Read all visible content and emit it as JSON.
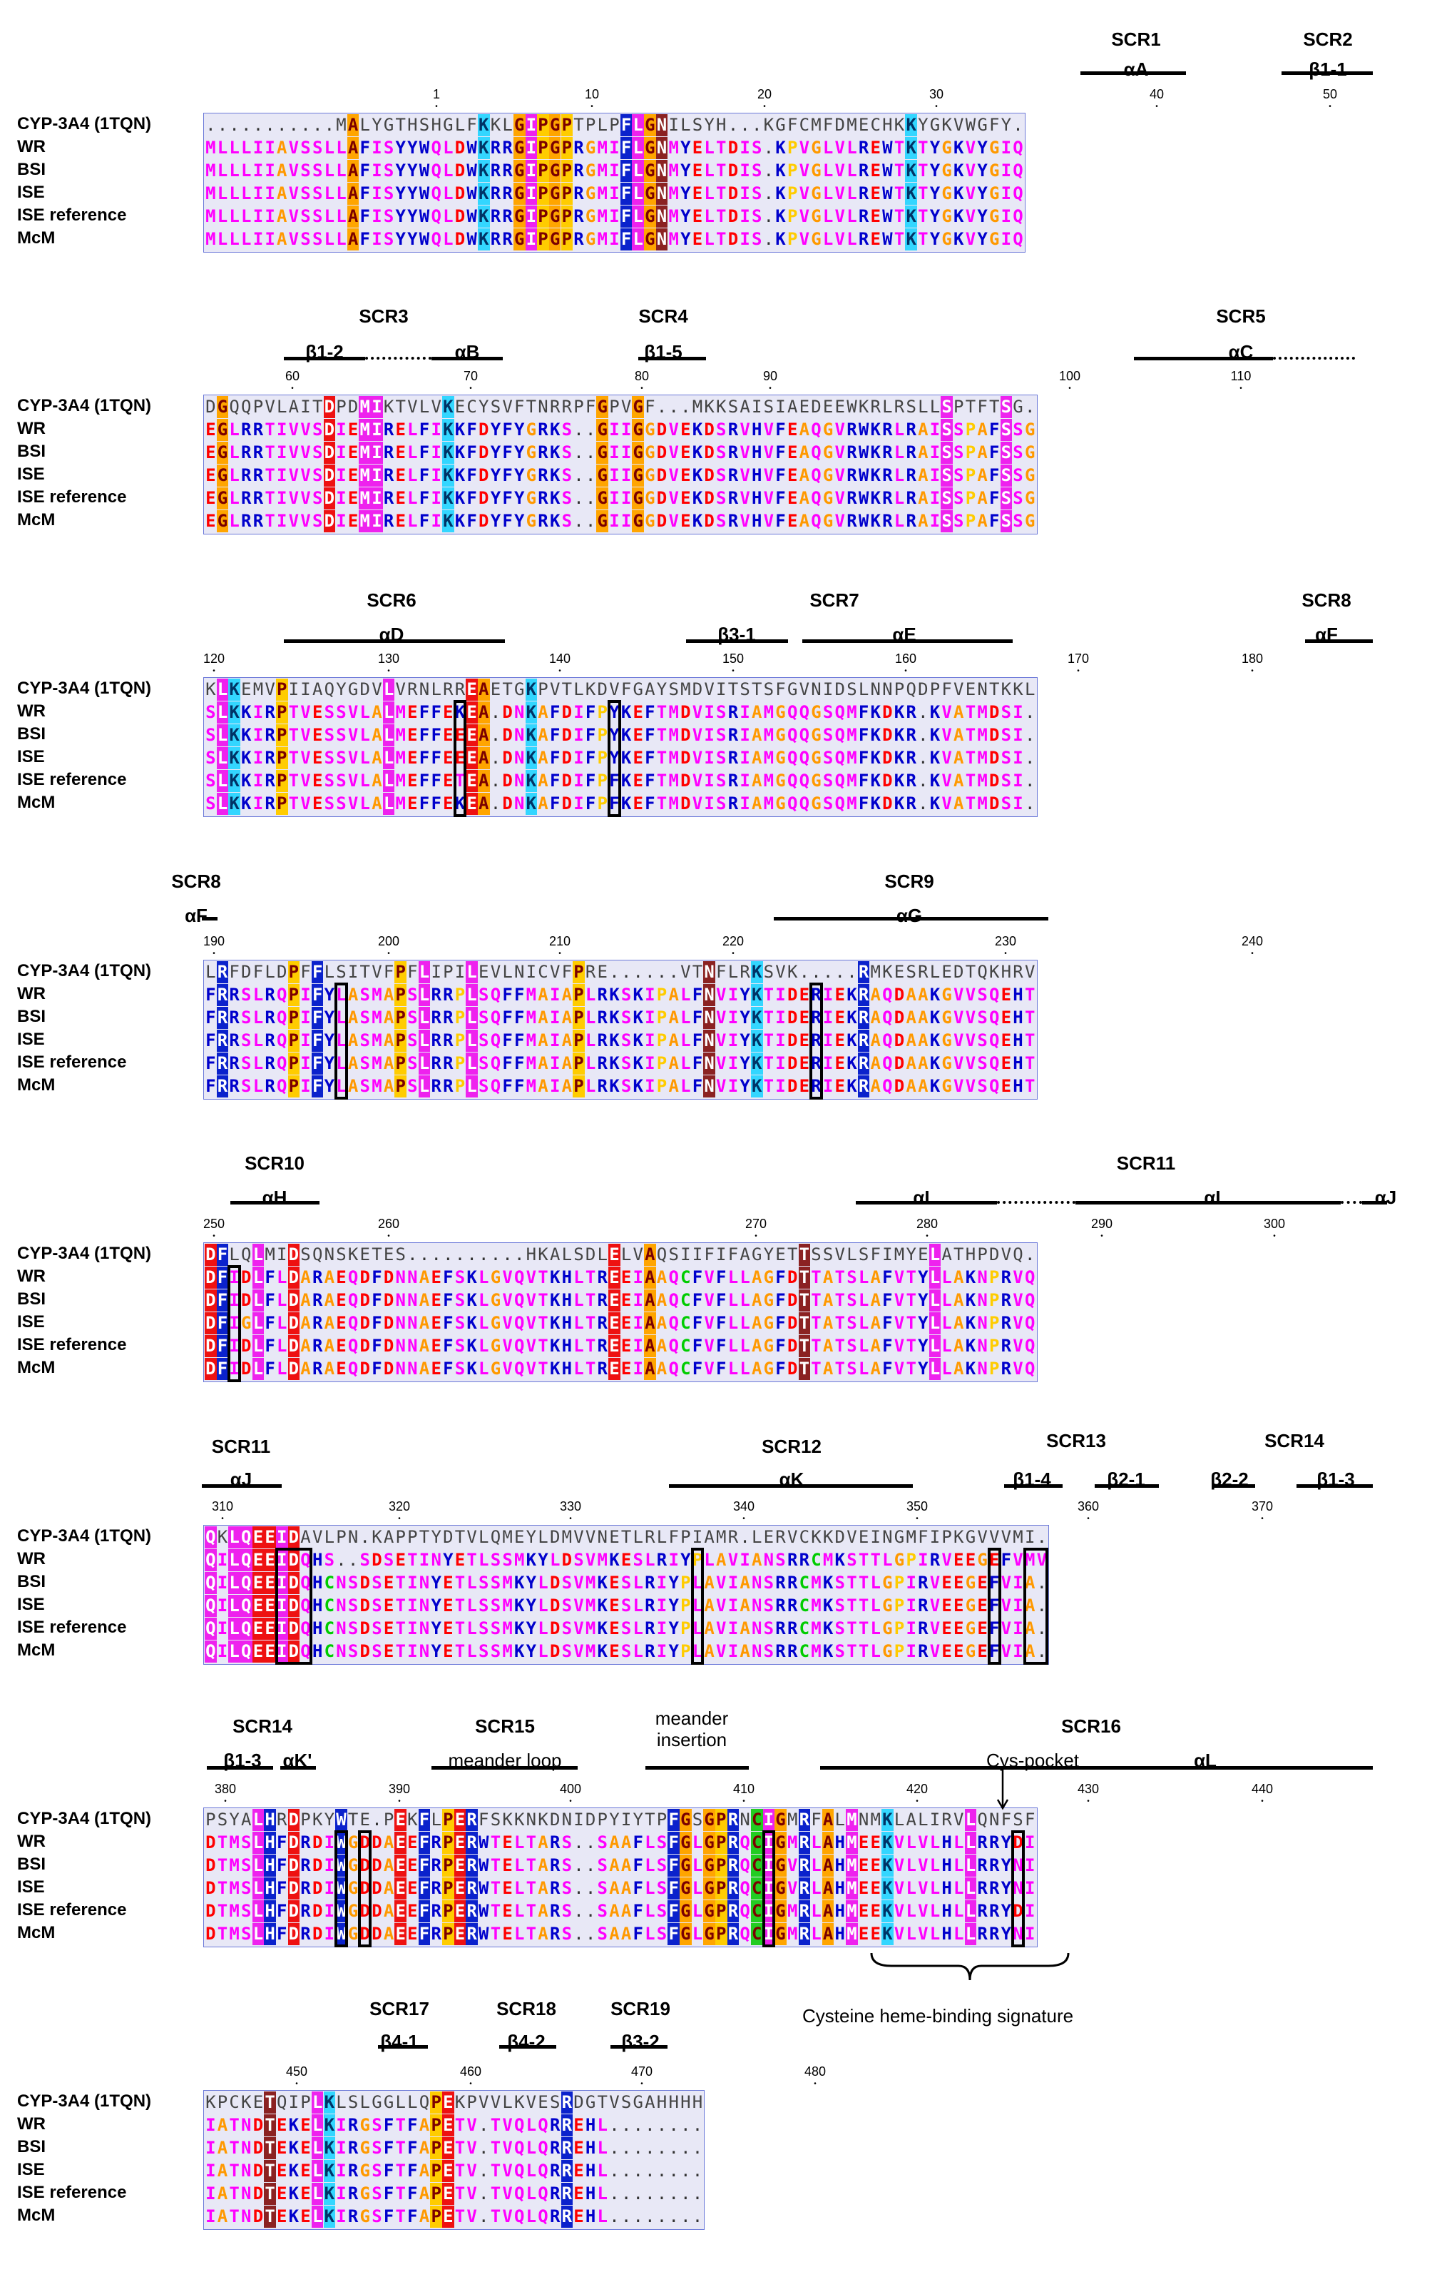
{
  "row_labels": [
    "CYP-3A4 (1TQN)",
    "WR",
    "BSI",
    "ISE",
    "ISE reference",
    "McM"
  ],
  "blocks": [
    {
      "tick_numbers": [
        1,
        10,
        20,
        30,
        40,
        50
      ],
      "sequences": [
        "...........MALYGTHSHGLFKKLGIPGPTPLPFLGNILSYH...KGFCMFDMECHKKYGKVWGFY",
        "MLLLIIAVSSLLAFISYYWQLDWKRRGIPGPRGMIFLGNMYELTDIS.KPVGLVLREWTKTYGKVYGIQ",
        "MLLLIIAVSSLLAFISYYWQLDWKRRGIPGPRGMIFLGNMYELTDIS.KPVGLVLREWTKTYGKVYGIQ",
        "MLLLIIAVSSLLAFISYYWQLDWKRRGIPGPRGMIFLGNMYELTDIS.KPVGLVLREWTKTYGKVYGIQ",
        "MLLLIIAVSSLLAFISYYWQLDWKRRGIPGPRGMIFLGNMYELTDIS.KPVGLVLREWTKTYGKVYGIQ",
        "MLLLIIAVSSLLAFISYYWQLDWKRRGIPGPRGMIFLGNMYELTDIS.KPVGLVLREWTKTYGKVYGIQ"
      ],
      "scr": [
        {
          "name": "SCR1",
          "sst": "αA"
        },
        {
          "name": "SCR2",
          "sst": "β1-1"
        }
      ]
    },
    {
      "tick_numbers": [
        60,
        70,
        80,
        90,
        100,
        110
      ],
      "sequences": [
        "DGQQPVLAITDPDMIKTVLVKECYSVFTNRRPFGPVGF...MKKSAISIAEDEEWKRLRSLLSPTFTSG",
        "EGLRRTIVVSDIEMIRELFIKKFDYFYGRKS..GIIGGDVEKDSRVHVFEAQGVRWKRLRAISSPAFSSG",
        "EGLRRTIVVSDIEMIRELFIKKFDYFYGRKS..GIIGGDVEKDSRVHVFEAQGVRWKRLRAISSPAFSSG",
        "EGLRRTIVVSDIEMIRELFIKKFDYFYGRKS..GIIGGDVEKDSRVHVFEAQGVRWKRLRAISSPAFSSG",
        "EGLRRTIVVSDIEMIRELFIKKFDYFYGRKS..GIIGGDVEKDSRVHVFEAQGVRWKRLRAISSPAFSSG",
        "EGLRRTIVVSDIEMIRELFIKKFDYFYGRKS..GIIGGDVEKDSRVHVFEAQGVRWKRLRAISSPAFSSG"
      ],
      "scr": [
        {
          "name": "SCR3",
          "sst1": "β1-2",
          "sst2": "αB"
        },
        {
          "name": "SCR4",
          "sst": "β1-5"
        },
        {
          "name": "SCR5",
          "sst": "αC"
        }
      ]
    },
    {
      "tick_numbers": [
        120,
        130,
        140,
        150,
        160,
        170,
        180
      ],
      "sequences": [
        "KLKEMVPIIAQYGDVLVRNLRREAETGKPVTLKDVFGAYSMDVITSTSFGVNIDSLNNPQDPFVENTKKL",
        "SLKKIRPTVESSVLALMEFFEKEA.DNKAFDIFPYKEFTMDVISRIAMGQQGSQMFKDKR.KVATMDSI",
        "SLKKIRPTVESSVLALMEFFEEEA.DNKAFDIFPYKEFTMDVISRIAMGQQGSQMFKDKR.KVATMDSI",
        "SLKKIRPTVESSVLALMEFFEEEA.DNKAFDIFPYKEFTMDVISRIAMGQQGSQMFKDKR.KVATMDSI",
        "SLKKIRPTVESSVLALMEFFETEA.DNKAFDIFPFKEFTMDVISRIAMGQQGSQMFKDKR.KVATMDSI",
        "SLKKIRPTVESSVLALMEFFEKEA.DNKAFDIFPFKEFTMDVISRIAMGQQGSQMFKDKR.KVATMDSI"
      ],
      "scr": [
        {
          "name": "SCR6",
          "sst": "αD"
        },
        {
          "name": "SCR7",
          "sst1": "β3-1",
          "sst2": "αE"
        },
        {
          "name": "SCR8",
          "sst": "αF"
        }
      ]
    },
    {
      "tick_numbers": [
        190,
        200,
        210,
        220,
        230,
        240
      ],
      "sequences": [
        "LRFDFLDPFFLSITVFPFLIPILEVLNICVFPRE......VTNFLRKSVK.....RMKESRLEDTQKHRV",
        "FRRSLRQPIFYLASMAPSLRRPLSQFFMAIAPLRKSKIPALFNVIYKTIDERIEKRAQDAAKGVVSQEHT",
        "FRRSLRQPIFYLASMAPSLRRPLSQFFMAIAPLRKSKIPALFNVIYKTIDERIEKRAQDAAKGVVSQEHT",
        "FRRSLRQPIFYLASMAPSLRRPLSQFFMAIAPLRKSKIPALFNVIYKTIDERIEKRAQDAAKGVVSQEHT",
        "FRRSLRQPIFYLASMAPSLRRPLSQFFMAIAPLRKSKIPALFNVIYKTIDERIEKRAQDAAKGVVSQEHT",
        "FRRSLRQPIFYLASMAPSLRRPLSQFFMAIAPLRKSKIPALFNVIYKTIDERIEKRAQDAAKGVVSQEHT"
      ],
      "scr": [
        {
          "name": "SCR8",
          "sst": "αF"
        },
        {
          "name": "SCR9",
          "sst": "αG"
        }
      ]
    },
    {
      "tick_numbers": [
        250,
        260,
        270,
        280,
        290,
        300
      ],
      "sequences": [
        "DFLQLMIDSQNSKETES..........HKALSDLELVAQSIIFIFAGYETTSSVLSFIMYELATHPDVQ",
        "DFIDLFLDARAEQDFDNNAEFSKLGVQVTKHLTREEIAAQCFVFLLAGFDTTATSLAFVTYLLAKNPRVQ",
        "DFIDLFLDARAEQDFDNNAEFSKLGVQVTKHLTREEIAAQCFVFLLAGFDTTATSLAFVTYLLAKNPRVQ",
        "DFIGLFLDARAEQDFDNNAEFSKLGVQVTKHLTREEIAAQCFVFLLAGFDTTATSLAFVTYLLAKNPRVQ",
        "DFIDLFLDARAEQDFDNNAEFSKLGVQVTKHLTREEIAAQCFVFLLAGFDTTATSLAFVTYLLAKNPRVQ",
        "DFIDLFLDARAEQDFDNNAEFSKLGVQVTKHLTREEIAAQCFVFLLAGFDTTATSLAFVTYLLAKNPRVQ"
      ],
      "scr": [
        {
          "name": "SCR10",
          "sst": "αH"
        },
        {
          "name": "SCR11",
          "sst1": "αI",
          "sst2": "αI",
          "sst3": "αJ"
        }
      ]
    },
    {
      "tick_numbers": [
        310,
        320,
        330,
        340,
        350,
        360,
        370
      ],
      "sequences": [
        "QKLQEEIDAVLPN.KAPPTYDTVLQMEYLDMVVNETLRLFPIAMR.LERVCKKDVEINGMFIPKGVVVMI",
        "QILQEEIDQHS..SDSETINYETLSSMKYLDSVMKESLRIYPLAVIANSRRCMKSTTLGPIRVEEGEFVMV",
        "QILQEEIDQHCNSDSETINYETLSSMKYLDSVMKESLRIYPLAVIANSRRCMKSTTLGPIRVEEGEFVIA",
        "QILQEEIDQHCNSDSETINYETLSSMKYLDSVMKESLRIYPLAVIANSRRCMKSTTLGPIRVEEGEFVIA",
        "QILQEEIDQHCNSDSETINYETLSSMKYLDSVMKESLRIYPLAVIANSRRCMKSTTLGPIRVEEGEFVIA",
        "QILQEEIDQHCNSDSETINYETLSSMKYLDSVMKESLRIYPLAVIANSRRCMKSTTLGPIRVEEGEFVIA"
      ],
      "scr": [
        {
          "name": "SCR11",
          "sst": "αJ"
        },
        {
          "name": "SCR12",
          "sst": "αK"
        },
        {
          "name": "SCR13",
          "sst1": "β1-4",
          "sst2": "β2-1"
        },
        {
          "name": "SCR14",
          "sst1": "β2-2",
          "sst2": "β1-3"
        }
      ]
    },
    {
      "tick_numbers": [
        380,
        390,
        400,
        410,
        420,
        430,
        440
      ],
      "sequences": [
        "PSYALHRDPKYWTE.PEKFLPERFSKKNKDNIDPYIYTPFGSGPRNCIGMRFALMNMKLALIRVLQNFSF",
        "DTMSLHFDRDIWGDDAEEFRPERWTELTARS..SAAFLSFGLGPRQCIGMRLAHMEEKVLVLHLLRRYDI",
        "DTMSLHFDRDIWGDDAEEFRPERWTELTARS..SAAFLSFGLGPRQCIGVRLAHMEEKVLVLHLLRRYNI",
        "DTMSLHFDRDIWGDDAEEFRPERWTELTARS..SAAFLSFGLGPRQCIGVRLAHMEEKVLVLHLLRRYNI",
        "DTMSLHFDRDIWGDDAEEFRPERWTELTARS..SAAFLSFGLGPRQCIGMRLAHMEEKVLVLHLLRRYDI",
        "DTMSLHFDRDIWGDDAEEFRPERWTELTARS..SAAFLSFGLGPRQCIGMRLAHMEEKVLVLHLLRRYNI"
      ],
      "scr": [
        {
          "name": "SCR14",
          "sst1": "β1-3",
          "sst2": "αK'"
        },
        {
          "name": "SCR15",
          "sst": "meander loop"
        },
        {
          "name": "",
          "sst": "meander insertion"
        },
        {
          "name": "SCR16",
          "sst1": "Cys-pocket",
          "sst2": "αL"
        }
      ],
      "annotation": "Cysteine heme-binding signature"
    },
    {
      "tick_numbers": [
        450,
        460,
        470,
        480
      ],
      "sequences": [
        "KPCKETQIPLKLSLGGLLQPEKPVVLKVESRDGTVSGAHHHH",
        "IATNDTEKELKIRGSFTFAPETV.TVQLQRREHL........",
        "IATNDTEKELKIRGSFTFAPETV.TVQLQRREHL........",
        "IATNDTEKELKIRGSFTFAPETV.TVQLQRREHL........",
        "IATNDTEKELKIRGSFTFAPETV.TVQLQRREHL........",
        "IATNDTEKELKIRGSFTFAPETV.TVQLQRREHL........"
      ],
      "scr": [
        {
          "name": "SCR17",
          "sst": "β4-1"
        },
        {
          "name": "SCR18",
          "sst": "β4-2"
        },
        {
          "name": "SCR19",
          "sst": "β3-2"
        }
      ]
    }
  ],
  "colors": {
    "A": "#ff9900",
    "G": "#ff9900",
    "P": "#ffcc00",
    "R": "#0000cc",
    "K": "#0000cc",
    "H": "#0000cc",
    "D": "#ff0000",
    "E": "#ff0000",
    "S": "#ff00ff",
    "T": "#ff00ff",
    "N": "#ff00ff",
    "Q": "#ff00ff",
    "C": "#00cc00",
    "I": "#ff00ff",
    "L": "#ff00ff",
    "M": "#ff00ff",
    "V": "#ff00ff",
    "F": "#0000cc",
    "W": "#0000cc",
    "Y": "#0000cc"
  }
}
